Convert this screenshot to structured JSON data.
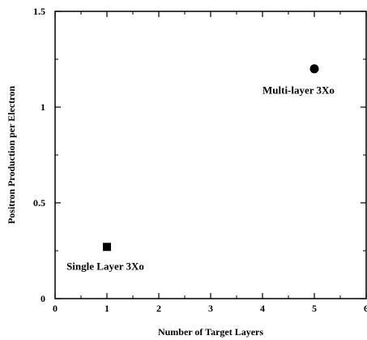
{
  "chart_data": {
    "type": "scatter",
    "xlabel": "Number of Target Layers",
    "ylabel": "Positron Production per Electron",
    "xlim": [
      0,
      6
    ],
    "ylim": [
      0,
      1.5
    ],
    "x_ticks": [
      0,
      1,
      2,
      3,
      4,
      5,
      6
    ],
    "y_ticks": [
      0,
      0.5,
      1,
      1.5
    ],
    "x_tick_labels": [
      "0",
      "1",
      "2",
      "3",
      "4",
      "5",
      "6"
    ],
    "y_tick_labels": [
      "0",
      "0.5",
      "1",
      "1.5"
    ],
    "grid": false,
    "points": [
      {
        "x": 1,
        "y": 0.27,
        "marker": "square"
      },
      {
        "x": 5,
        "y": 1.2,
        "marker": "circle"
      }
    ],
    "annotations": [
      {
        "text": "Single Layer 3Xo",
        "x": 0.22,
        "y": 0.15
      },
      {
        "text": "Multi-layer 3Xo",
        "x": 4.0,
        "y": 1.07
      }
    ]
  }
}
